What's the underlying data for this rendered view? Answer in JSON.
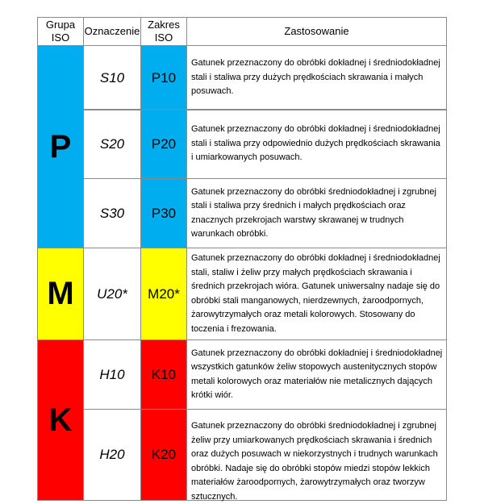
{
  "header": {
    "group": "Grupa ISO",
    "designation": "Oznaczenie",
    "range": "Zakres ISO",
    "application": "Zastosowanie"
  },
  "colors": {
    "P": "#00AEEF",
    "M": "#FFFF00",
    "K": "#FF0000"
  },
  "groups": [
    {
      "label": "P"
    },
    {
      "label": "M"
    },
    {
      "label": "K"
    }
  ],
  "rows": [
    {
      "designation": "S10",
      "range": "P10",
      "text": "Gatunek przeznaczony do obróbki dokładnej i średniodokładnej stali i staliwa przy dużych prędkościach skrawania i małych posuwach."
    },
    {
      "designation": "S20",
      "range": "P20",
      "text": "Gatunek przeznaczony do obróbki dokładnej i średniodokładnej stali i staliwa przy odpowiednio dużych prędkościach skrawania i umiarkowanych posuwach."
    },
    {
      "designation": "S30",
      "range": "P30",
      "text": "Gatunek przeznaczony do obróbki średniodokładnej i zgrubnej stali i staliwa przy średnich i małych prędkościach oraz znacznych przekrojach warstwy skrawanej w trudnych warunkach obróbki."
    },
    {
      "designation": "U20*",
      "range": "M20*",
      "text": "Gatunek przeznaczony do obróbki dokładnej i średniodokładnej stali, staliw i żeliw przy małych prędkościach skrawania i średnich przekrojach wióra. Gatunek uniwersalny nadaje się do obróbki stali manganowych, nierdzewnych, żaroodpornych, żarowytrzymałych oraz metali kolorowych. Stosowany do toczenia i frezowania."
    },
    {
      "designation": "H10",
      "range": "K10",
      "text": "Gatunek przeznaczony do obróbki dokładniej i średniodokładnej wszystkich gatunków żeliw stopowych austenitycznych stopów metali kolorowych oraz materiałów nie metalicznych dających krótki wiór."
    },
    {
      "designation": "H20",
      "range": "K20",
      "text": "Gatunek przeznaczony do obróbki średniodokładnej i zgrubnej żeliw przy umiarkowanych prędkościach skrawania i średnich oraz dużych posuwach w niekorzystnych i trudnych warunkach obróbki. Nadaje się do obróbki stopów miedzi stopów lekkich materiałów żaroodpornych, żarowytrzymałych oraz tworzyw sztucznych."
    }
  ]
}
